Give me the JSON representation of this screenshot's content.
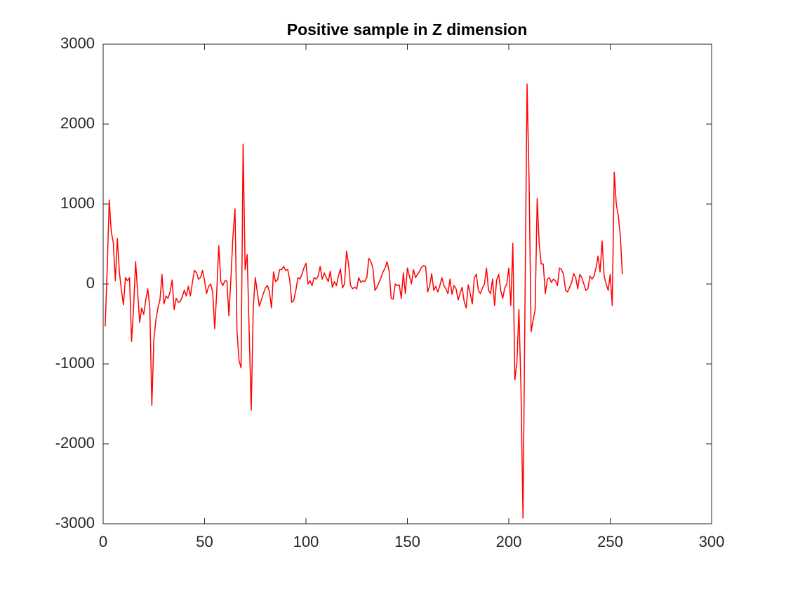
{
  "chart_data": {
    "type": "line",
    "title": "Positive sample in Z dimension",
    "x": [
      1,
      2,
      3,
      4,
      5,
      6,
      7,
      8,
      9,
      10,
      11,
      12,
      13,
      14,
      15,
      16,
      17,
      18,
      19,
      20,
      21,
      22,
      23,
      24,
      25,
      26,
      27,
      28,
      29,
      30,
      31,
      32,
      33,
      34,
      35,
      36,
      37,
      38,
      39,
      40,
      41,
      42,
      43,
      44,
      45,
      46,
      47,
      48,
      49,
      50,
      51,
      52,
      53,
      54,
      55,
      56,
      57,
      58,
      59,
      60,
      61,
      62,
      63,
      64,
      65,
      66,
      67,
      68,
      69,
      70,
      71,
      72,
      73,
      74,
      75,
      76,
      77,
      78,
      79,
      80,
      81,
      82,
      83,
      84,
      85,
      86,
      87,
      88,
      89,
      90,
      91,
      92,
      93,
      94,
      95,
      96,
      97,
      98,
      99,
      100,
      101,
      102,
      103,
      104,
      105,
      106,
      107,
      108,
      109,
      110,
      111,
      112,
      113,
      114,
      115,
      116,
      117,
      118,
      119,
      120,
      121,
      122,
      123,
      124,
      125,
      126,
      127,
      128,
      129,
      130,
      131,
      132,
      133,
      134,
      135,
      136,
      137,
      138,
      139,
      140,
      141,
      142,
      143,
      144,
      145,
      146,
      147,
      148,
      149,
      150,
      151,
      152,
      153,
      154,
      155,
      156,
      157,
      158,
      159,
      160,
      161,
      162,
      163,
      164,
      165,
      166,
      167,
      168,
      169,
      170,
      171,
      172,
      173,
      174,
      175,
      176,
      177,
      178,
      179,
      180,
      181,
      182,
      183,
      184,
      185,
      186,
      187,
      188,
      189,
      190,
      191,
      192,
      193,
      194,
      195,
      196,
      197,
      198,
      199,
      200,
      201,
      202,
      203,
      204,
      205,
      206,
      207,
      208,
      209,
      210,
      211,
      212,
      213,
      214,
      215,
      216,
      217,
      218,
      219,
      220,
      221,
      222,
      223,
      224,
      225,
      226,
      227,
      228,
      229,
      230,
      231,
      232,
      233,
      234,
      235,
      236,
      237,
      238,
      239,
      240,
      241,
      242,
      243,
      244,
      245,
      246,
      247,
      248,
      249,
      250,
      251,
      252,
      253,
      254,
      255,
      256
    ],
    "series": [
      {
        "color": "#ff0000",
        "values": [
          -530,
          200,
          1050,
          650,
          520,
          40,
          570,
          150,
          -80,
          -260,
          80,
          40,
          80,
          -720,
          -300,
          280,
          -100,
          -480,
          -300,
          -380,
          -200,
          -60,
          -300,
          -1520,
          -700,
          -450,
          -300,
          -200,
          120,
          -250,
          -150,
          -180,
          -100,
          50,
          -320,
          -180,
          -230,
          -220,
          -160,
          -80,
          -150,
          -30,
          -150,
          20,
          170,
          140,
          60,
          80,
          170,
          40,
          -120,
          -30,
          0,
          -100,
          -560,
          -100,
          480,
          30,
          -20,
          40,
          40,
          -400,
          80,
          600,
          940,
          -600,
          -960,
          -1050,
          1750,
          180,
          370,
          -600,
          -1580,
          -300,
          80,
          -100,
          -280,
          -200,
          -120,
          -50,
          -20,
          -100,
          -300,
          150,
          30,
          50,
          180,
          180,
          220,
          170,
          180,
          50,
          -230,
          -200,
          -80,
          80,
          60,
          120,
          200,
          260,
          0,
          40,
          -20,
          80,
          60,
          100,
          220,
          60,
          140,
          80,
          30,
          160,
          -40,
          30,
          -20,
          100,
          190,
          -50,
          0,
          410,
          250,
          -20,
          -60,
          -40,
          -60,
          80,
          20,
          40,
          30,
          80,
          320,
          280,
          200,
          -80,
          -40,
          20,
          80,
          150,
          200,
          280,
          160,
          -180,
          -190,
          0,
          -20,
          -10,
          -180,
          140,
          -120,
          200,
          100,
          0,
          180,
          80,
          120,
          160,
          210,
          230,
          220,
          -100,
          -20,
          130,
          -80,
          -30,
          -100,
          -20,
          80,
          -20,
          -60,
          -120,
          60,
          -130,
          -20,
          -60,
          -200,
          -120,
          -40,
          -220,
          -300,
          -10,
          -120,
          -250,
          80,
          120,
          -80,
          -120,
          -50,
          0,
          200,
          -80,
          -120,
          60,
          -270,
          50,
          120,
          -80,
          -180,
          -50,
          0,
          200,
          -270,
          510,
          -1200,
          -980,
          -320,
          -1300,
          -2930,
          -200,
          2500,
          1300,
          -600,
          -450,
          -320,
          1070,
          500,
          250,
          250,
          -120,
          60,
          80,
          20,
          60,
          40,
          -20,
          200,
          180,
          120,
          -80,
          -100,
          -40,
          20,
          130,
          80,
          -60,
          120,
          80,
          0,
          -80,
          -60,
          100,
          60,
          100,
          200,
          350,
          150,
          540,
          100,
          0,
          -80,
          120,
          -270,
          1400,
          1000,
          850,
          600,
          120
        ]
      }
    ],
    "xlim": [
      0,
      300
    ],
    "xticks": [
      0,
      50,
      100,
      150,
      200,
      250,
      300
    ],
    "ylim": [
      -3000,
      3000
    ],
    "yticks": [
      -3000,
      -2000,
      -1000,
      0,
      1000,
      2000,
      3000
    ]
  }
}
